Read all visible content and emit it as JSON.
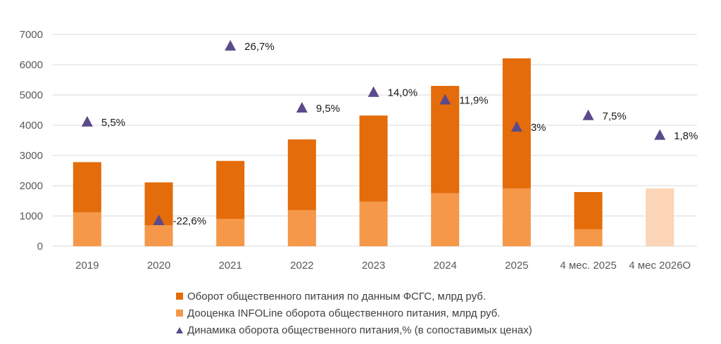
{
  "chart_data": {
    "type": "bar",
    "stacked": true,
    "categories": [
      "2019",
      "2020",
      "2021",
      "2022",
      "2023",
      "2024",
      "2025",
      "4 мес. 2025",
      "4 мес 2026О"
    ],
    "series": [
      {
        "name": "Дооценка INFOLine оборота общественного питания, млрд руб.",
        "color": "#f5984a",
        "values": [
          1120,
          690,
          900,
          1190,
          1470,
          1750,
          1910,
          560,
          1910
        ],
        "colors_override": {
          "8": "#fbd5b5"
        }
      },
      {
        "name": "Оборот общественного питания по данным ФСГС, млрд руб.",
        "color": "#e46c0a",
        "values": [
          1660,
          1420,
          1920,
          2340,
          2850,
          3550,
          4300,
          1230,
          0
        ]
      }
    ],
    "markers": {
      "name": "Динамика оборота общественного питания,% (в сопоставимых ценах)",
      "color": "#5b4a8b",
      "positions": [
        4120,
        860,
        6630,
        4580,
        5100,
        4850,
        3950,
        4330,
        3680
      ],
      "labels": [
        "5,5%",
        "-22,6%",
        "26,7%",
        "9,5%",
        "14,0%",
        "11,9%",
        "3%",
        "7,5%",
        "1,8%"
      ]
    },
    "yticks": [
      "0",
      "1000",
      "2000",
      "3000",
      "4000",
      "5000",
      "6000",
      "7000"
    ],
    "ylim": [
      0,
      7000
    ],
    "grid": true,
    "legend_position": "bottom",
    "legend": {
      "items": [
        {
          "label": "Оборот общественного питания по данным ФСГС, млрд руб.",
          "color": "#e46c0a",
          "shape": "square"
        },
        {
          "label": "Дооценка INFOLine оборота общественного питания, млрд руб.",
          "color": "#f5984a",
          "shape": "square"
        },
        {
          "label": "Динамика оборота общественного питания,% (в сопоставимых ценах)",
          "color": "#5b4a8b",
          "shape": "triangle"
        }
      ]
    }
  }
}
